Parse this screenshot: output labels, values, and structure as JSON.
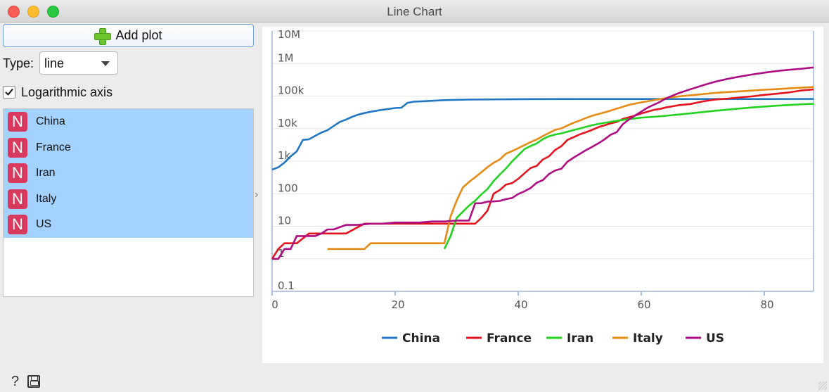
{
  "window": {
    "title": "Line Chart"
  },
  "controls": {
    "add_plot_label": "Add plot",
    "type_label": "Type:",
    "type_value": "line",
    "log_axis_label": "Logarithmic axis",
    "log_axis_checked": true
  },
  "series_list": [
    {
      "badge": "N",
      "label": "China"
    },
    {
      "badge": "N",
      "label": "France"
    },
    {
      "badge": "N",
      "label": "Iran"
    },
    {
      "badge": "N",
      "label": "Italy"
    },
    {
      "badge": "N",
      "label": "US"
    }
  ],
  "chart_data": {
    "type": "line",
    "title": "",
    "xlabel": "",
    "ylabel": "",
    "xlim": [
      0,
      88
    ],
    "ylim": [
      0.1,
      10000000
    ],
    "yscale": "log",
    "grid": {
      "x": false,
      "y": true
    },
    "legend": "bottom",
    "x_ticks": [
      0,
      20,
      40,
      60,
      80
    ],
    "y_ticks": [
      {
        "value": 0.1,
        "label": "0.1"
      },
      {
        "value": 1,
        "label": "1"
      },
      {
        "value": 10,
        "label": "10"
      },
      {
        "value": 100,
        "label": "100"
      },
      {
        "value": 1000,
        "label": "1k"
      },
      {
        "value": 10000,
        "label": "10k"
      },
      {
        "value": 100000,
        "label": "100k"
      },
      {
        "value": 1000000,
        "label": "1M"
      },
      {
        "value": 10000000,
        "label": "10M"
      }
    ],
    "series": [
      {
        "name": "China",
        "color": "#1f77c4",
        "x": [
          0,
          1,
          2,
          3,
          4,
          5,
          6,
          7,
          8,
          9,
          10,
          11,
          12,
          13,
          14,
          15,
          16,
          18,
          20,
          21,
          22,
          23,
          25,
          28,
          32,
          40,
          50,
          60,
          70,
          80,
          88
        ],
        "y": [
          550,
          650,
          900,
          1400,
          2000,
          4500,
          4700,
          6000,
          7500,
          9000,
          12000,
          16000,
          19000,
          23000,
          27000,
          30000,
          33000,
          38000,
          43000,
          44000,
          62000,
          67000,
          70000,
          75000,
          78000,
          80500,
          81000,
          81000,
          81200,
          81300,
          81400
        ]
      },
      {
        "name": "France",
        "color": "#e3141e",
        "x": [
          0,
          1,
          2,
          3,
          4,
          6,
          7,
          8,
          9,
          10,
          11,
          12,
          15,
          16,
          17,
          18,
          20,
          21,
          22,
          23,
          25,
          28,
          30,
          33,
          34,
          35,
          36,
          37,
          38,
          39,
          40,
          41,
          42,
          43,
          44,
          45,
          46,
          47,
          48,
          49,
          50,
          51,
          52,
          53,
          54,
          55,
          56,
          57,
          58,
          59,
          60,
          61,
          62,
          63,
          64,
          66,
          68,
          70,
          72,
          74,
          76,
          78,
          80,
          82,
          84,
          86,
          88
        ],
        "y": [
          1,
          2,
          3,
          3,
          3,
          6,
          6,
          6,
          6,
          6,
          6,
          6,
          12,
          12,
          12,
          12,
          12,
          12,
          12,
          12,
          12,
          12,
          12,
          12,
          18,
          30,
          100,
          130,
          190,
          212,
          285,
          423,
          613,
          716,
          1126,
          1412,
          2204,
          2877,
          4499,
          5423,
          6633,
          7730,
          9134,
          11010,
          12612,
          14459,
          16018,
          19856,
          22304,
          25233,
          29155,
          32964,
          37575,
          40174,
          44550,
          52128,
          56989,
          68605,
          78167,
          83080,
          90676,
          98010,
          109069,
          117749,
          129654,
          147863,
          160000
        ]
      },
      {
        "name": "Iran",
        "color": "#22d21f",
        "x": [
          28,
          29,
          30,
          31,
          32,
          33,
          34,
          35,
          36,
          37,
          38,
          39,
          40,
          41,
          42,
          43,
          44,
          45,
          46,
          47,
          48,
          49,
          50,
          51,
          52,
          53,
          54,
          55,
          56,
          58,
          60,
          62,
          64,
          66,
          68,
          70,
          72,
          74,
          76,
          78,
          80,
          82,
          84,
          86,
          88
        ],
        "y": [
          2,
          5,
          18,
          28,
          43,
          61,
          95,
          139,
          245,
          388,
          593,
          978,
          1501,
          2336,
          2922,
          3513,
          4747,
          5823,
          6566,
          7161,
          8042,
          9000,
          10075,
          11364,
          12729,
          13938,
          14991,
          16169,
          17361,
          19644,
          21638,
          23049,
          24811,
          27017,
          29406,
          32332,
          35408,
          38309,
          41495,
          44605,
          47593,
          50468,
          53183,
          55743,
          58226
        ]
      },
      {
        "name": "Italy",
        "color": "#e58a14",
        "x": [
          9,
          10,
          11,
          12,
          13,
          14,
          15,
          16,
          17,
          18,
          19,
          20,
          21,
          22,
          24,
          26,
          28,
          29,
          30,
          31,
          32,
          33,
          34,
          35,
          36,
          37,
          38,
          39,
          40,
          41,
          42,
          43,
          44,
          45,
          46,
          47,
          48,
          49,
          50,
          51,
          52,
          53,
          54,
          55,
          56,
          57,
          58,
          59,
          60,
          62,
          64,
          66,
          68,
          70,
          72,
          74,
          76,
          78,
          80,
          82,
          84,
          86,
          88
        ],
        "y": [
          2,
          2,
          2,
          2,
          2,
          2,
          2,
          3,
          3,
          3,
          3,
          3,
          3,
          3,
          3,
          3,
          3,
          20,
          62,
          155,
          229,
          322,
          453,
          655,
          888,
          1128,
          1694,
          2036,
          2502,
          3089,
          3858,
          4636,
          5883,
          7375,
          9172,
          10149,
          12462,
          15113,
          17660,
          21157,
          24747,
          27980,
          31506,
          35713,
          41035,
          47021,
          53578,
          59138,
          63927,
          74386,
          86498,
          97689,
          105792,
          115242,
          124632,
          132547,
          139422,
          147577,
          156363,
          162488,
          172434,
          181228,
          190000
        ]
      },
      {
        "name": "US",
        "color": "#ae0c82",
        "x": [
          0,
          1,
          2,
          3,
          4,
          5,
          6,
          7,
          8,
          9,
          10,
          12,
          14,
          16,
          18,
          20,
          22,
          24,
          26,
          28,
          30,
          31,
          32,
          33,
          34,
          35,
          36,
          37,
          38,
          39,
          40,
          41,
          42,
          43,
          44,
          45,
          46,
          47,
          48,
          49,
          50,
          51,
          52,
          53,
          54,
          55,
          56,
          57,
          58,
          59,
          60,
          61,
          62,
          63,
          64,
          65,
          66,
          68,
          70,
          72,
          74,
          76,
          78,
          80,
          82,
          84,
          86,
          88
        ],
        "y": [
          1,
          1,
          2,
          2,
          5,
          5,
          5,
          5,
          6,
          8,
          8,
          11,
          11,
          12,
          12,
          13,
          13,
          13,
          14,
          14,
          15,
          15,
          15,
          51,
          51,
          57,
          58,
          60,
          68,
          74,
          98,
          118,
          149,
          217,
          262,
          402,
          518,
          583,
          959,
          1281,
          1663,
          2179,
          2727,
          3499,
          4632,
          6421,
          7786,
          13680,
          19101,
          25493,
          33276,
          43847,
          53740,
          65778,
          83836,
          101657,
          121478,
          161807,
          213372,
          275586,
          336851,
          396223,
          459165,
          523000,
          588000,
          640000,
          690000,
          760000
        ]
      }
    ]
  }
}
